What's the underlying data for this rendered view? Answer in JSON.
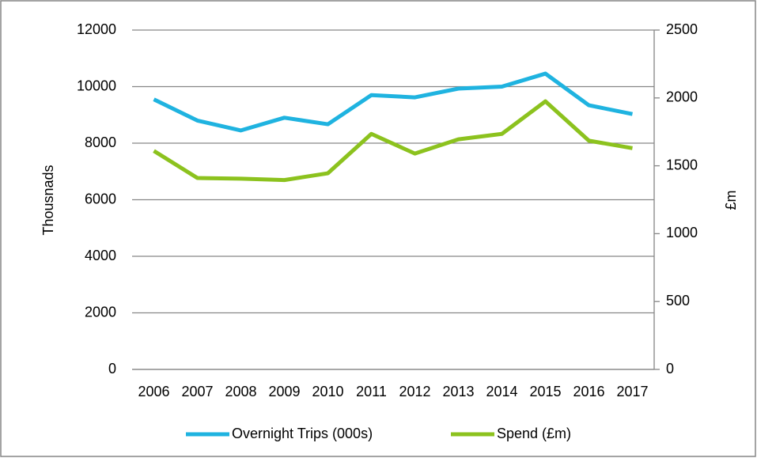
{
  "chart_data": {
    "type": "line",
    "categories": [
      "2006",
      "2007",
      "2008",
      "2009",
      "2010",
      "2011",
      "2012",
      "2013",
      "2014",
      "2015",
      "2016",
      "2017"
    ],
    "series": [
      {
        "name": "Overnight Trips (000s)",
        "color": "#1fb3e0",
        "values": [
          9550,
          8800,
          8450,
          8900,
          8670,
          9700,
          9620,
          9930,
          10000,
          10460,
          9340,
          9030
        ]
      },
      {
        "name": "Spend (£m)",
        "color": "#8cc21e",
        "axis": "y2",
        "values": [
          1610,
          1410,
          1405,
          1395,
          1445,
          1735,
          1590,
          1695,
          1735,
          1975,
          1685,
          1630
        ]
      }
    ],
    "ylabel": "Thousnads",
    "y2label": "£m",
    "ylim": [
      0,
      12000
    ],
    "yticks": [
      0,
      2000,
      4000,
      6000,
      8000,
      10000,
      12000
    ],
    "y2lim": [
      0,
      2500
    ],
    "y2ticks": [
      0,
      500,
      1000,
      1500,
      2000,
      2500
    ],
    "grid": true,
    "legend": "bottom"
  }
}
